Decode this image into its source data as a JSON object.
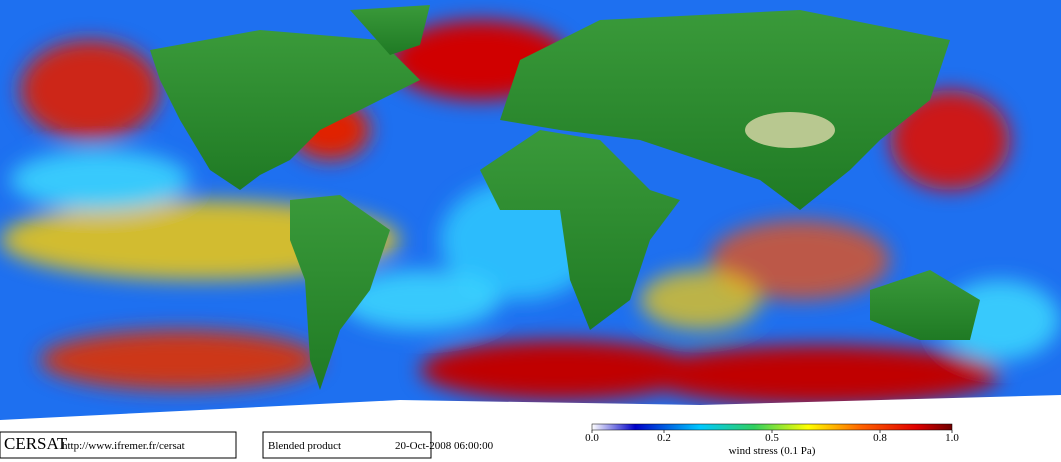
{
  "footer": {
    "brand": "CERSAT",
    "url": "http://www.ifremer.fr/cersat",
    "product": "Blended product",
    "date": "20-Oct-2008 06:00:00"
  },
  "colorbar": {
    "label": "wind stress (0.1 Pa)",
    "lim": [
      0,
      1
    ],
    "ticks": [
      {
        "value": 0,
        "label": "0.0"
      },
      0.2,
      0.5,
      0.8,
      {
        "value": 1,
        "label": "1.0"
      }
    ]
  }
}
